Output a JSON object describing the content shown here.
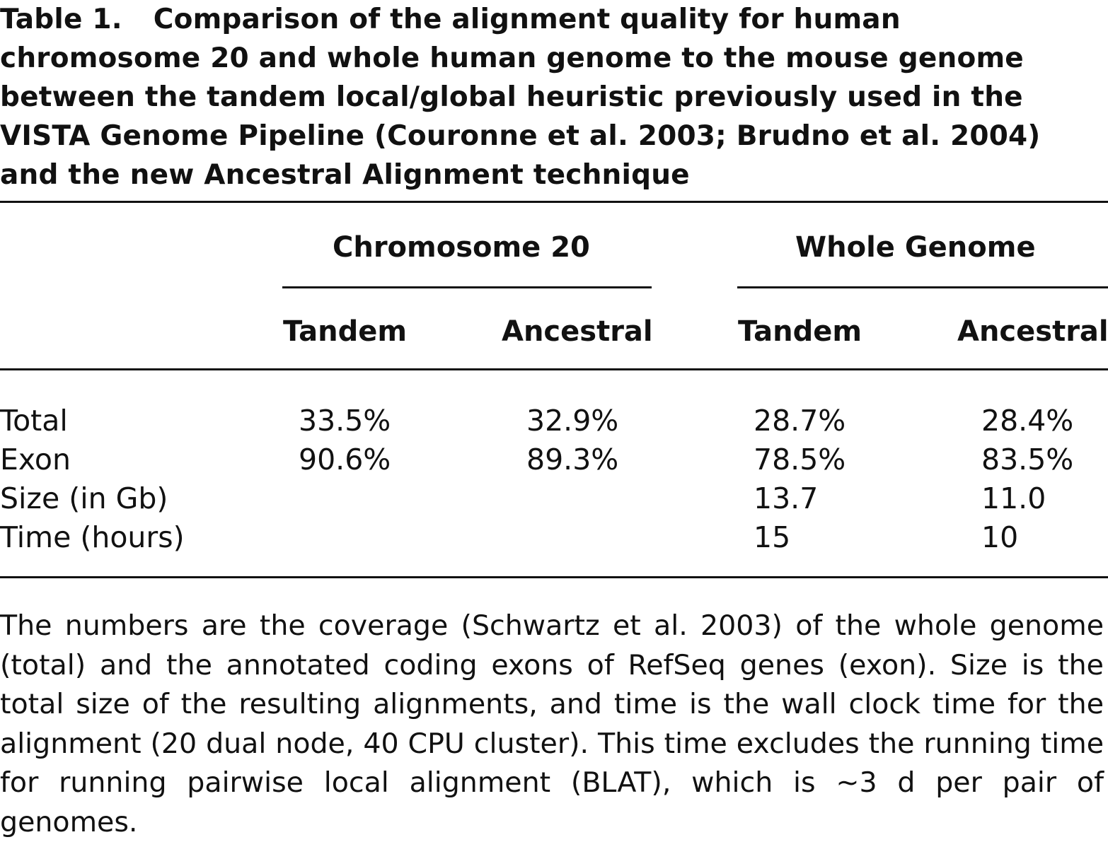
{
  "caption": {
    "label": "Table 1.",
    "text": "Comparison of the alignment quality for human chromosome 20 and whole human genome to the mouse genome between the tandem local/global heuristic previously used in the VISTA Genome Pipeline (Couronne et al. 2003; Brudno et al. 2004) and the new Ancestral Alignment technique"
  },
  "table": {
    "group_headers": [
      "Chromosome 20",
      "Whole Genome"
    ],
    "column_headers": [
      "Tandem",
      "Ancestral",
      "Tandem",
      "Ancestral"
    ],
    "rows": [
      {
        "label": "Total",
        "values": [
          "33.5%",
          "32.9%",
          "28.7%",
          "28.4%"
        ]
      },
      {
        "label": "Exon",
        "values": [
          "90.6%",
          "89.3%",
          "78.5%",
          "83.5%"
        ]
      },
      {
        "label": "Size (in Gb)",
        "values": [
          "",
          "",
          "13.7",
          "11.0"
        ]
      },
      {
        "label": "Time (hours)",
        "values": [
          "",
          "",
          "15",
          "10"
        ]
      }
    ]
  },
  "footnote": "The numbers are the coverage (Schwartz et al. 2003) of the whole genome (total) and the annotated coding exons of RefSeq genes (exon). Size is the total size of the resulting alignments, and time is the wall clock time for the alignment (20 dual node, 40 CPU cluster). This time excludes the running time for running pairwise local alignment (BLAT), which is ∼3 d per pair of genomes."
}
